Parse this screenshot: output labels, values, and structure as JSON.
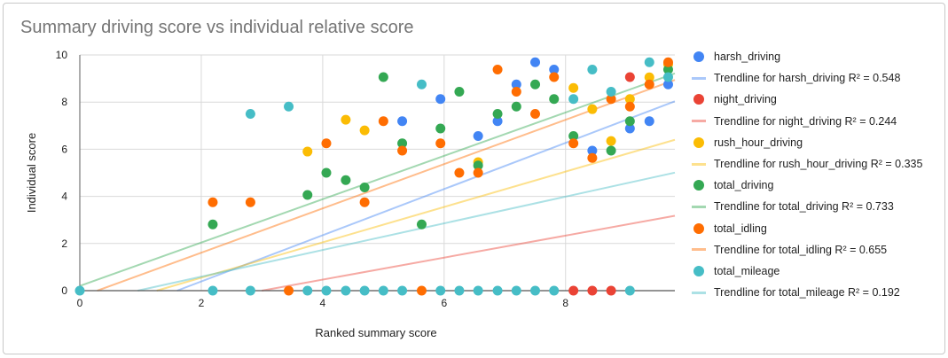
{
  "chart_data": {
    "type": "scatter",
    "title": "Summary driving score vs individual relative score",
    "xlabel": "Ranked summary score",
    "ylabel": "Individual score",
    "xlim": [
      0,
      9.8
    ],
    "ylim": [
      0,
      10
    ],
    "xticks": [
      "0",
      "2",
      "4",
      "6",
      "8"
    ],
    "yticks": [
      "0",
      "2",
      "4",
      "6",
      "8",
      "10"
    ],
    "grid": true,
    "legend_position": "right",
    "series": [
      {
        "name": "harsh_driving",
        "color": "#4285f4",
        "trend_label": "Trendline for harsh_driving R² = 0.548",
        "trend": {
          "slope": 0.98,
          "intercept": -1.57
        },
        "points": [
          [
            5.31,
            7.19
          ],
          [
            5.94,
            8.13
          ],
          [
            6.56,
            6.56
          ],
          [
            6.88,
            7.19
          ],
          [
            7.19,
            8.75
          ],
          [
            7.5,
            9.69
          ],
          [
            7.81,
            9.38
          ],
          [
            8.44,
            5.94
          ],
          [
            9.06,
            6.88
          ],
          [
            9.38,
            7.19
          ],
          [
            9.69,
            8.75
          ]
        ]
      },
      {
        "name": "night_driving",
        "color": "#ea4335",
        "trend_label": "Trendline for night_driving R² = 0.244",
        "trend": {
          "slope": 0.467,
          "intercept": -1.4
        },
        "points": [
          [
            8.13,
            0
          ],
          [
            8.44,
            0
          ],
          [
            8.75,
            0
          ],
          [
            9.06,
            9.06
          ]
        ]
      },
      {
        "name": "rush_hour_driving",
        "color": "#fbbc04",
        "trend_label": "Trendline for rush_hour_driving R² = 0.335",
        "trend": {
          "slope": 0.75,
          "intercept": -0.95
        },
        "points": [
          [
            3.75,
            5.9
          ],
          [
            4.38,
            7.25
          ],
          [
            4.69,
            6.8
          ],
          [
            6.56,
            5.45
          ],
          [
            8.13,
            8.6
          ],
          [
            8.44,
            7.7
          ],
          [
            8.75,
            6.35
          ],
          [
            9.06,
            8.13
          ],
          [
            9.38,
            9.05
          ],
          [
            9.69,
            9.6
          ]
        ]
      },
      {
        "name": "total_driving",
        "color": "#34a853",
        "trend_label": "Trendline for total_driving R² = 0.733",
        "trend": {
          "slope": 0.92,
          "intercept": 0.2
        },
        "points": [
          [
            2.19,
            2.81
          ],
          [
            3.75,
            4.06
          ],
          [
            4.06,
            5.0
          ],
          [
            4.38,
            4.69
          ],
          [
            4.69,
            4.38
          ],
          [
            5.0,
            9.06
          ],
          [
            5.31,
            6.25
          ],
          [
            5.63,
            2.81
          ],
          [
            5.94,
            6.88
          ],
          [
            6.25,
            8.44
          ],
          [
            6.56,
            5.31
          ],
          [
            6.88,
            7.5
          ],
          [
            7.19,
            7.81
          ],
          [
            7.5,
            8.75
          ],
          [
            7.81,
            8.13
          ],
          [
            8.13,
            6.56
          ],
          [
            8.75,
            5.94
          ],
          [
            9.06,
            7.19
          ],
          [
            9.69,
            9.38
          ]
        ]
      },
      {
        "name": "total_idling",
        "color": "#ff6d01",
        "trend_label": "Trendline for total_idling R² = 0.655",
        "trend": {
          "slope": 0.94,
          "intercept": -0.27
        },
        "points": [
          [
            2.19,
            3.75
          ],
          [
            2.81,
            3.75
          ],
          [
            3.44,
            0
          ],
          [
            4.06,
            6.25
          ],
          [
            4.69,
            3.75
          ],
          [
            5.0,
            7.19
          ],
          [
            5.31,
            5.94
          ],
          [
            5.63,
            0
          ],
          [
            5.94,
            6.25
          ],
          [
            6.25,
            5.0
          ],
          [
            6.56,
            5.0
          ],
          [
            6.88,
            9.38
          ],
          [
            7.19,
            8.44
          ],
          [
            7.5,
            7.5
          ],
          [
            7.81,
            9.06
          ],
          [
            8.13,
            6.25
          ],
          [
            8.44,
            5.63
          ],
          [
            8.75,
            8.13
          ],
          [
            9.06,
            7.81
          ],
          [
            9.38,
            8.75
          ],
          [
            9.69,
            9.69
          ]
        ]
      },
      {
        "name": "total_mileage",
        "color": "#46bdc6",
        "trend_label": "Trendline for total_mileage R² = 0.192",
        "trend": {
          "slope": 0.566,
          "intercept": -0.54
        },
        "points": [
          [
            0,
            0
          ],
          [
            2.19,
            0
          ],
          [
            2.81,
            7.5
          ],
          [
            2.81,
            0
          ],
          [
            3.44,
            7.81
          ],
          [
            3.75,
            0
          ],
          [
            4.06,
            0
          ],
          [
            4.38,
            0
          ],
          [
            4.69,
            0
          ],
          [
            5.0,
            0
          ],
          [
            5.31,
            0
          ],
          [
            5.63,
            8.75
          ],
          [
            5.94,
            0
          ],
          [
            6.25,
            0
          ],
          [
            6.56,
            0
          ],
          [
            6.88,
            0
          ],
          [
            7.19,
            0
          ],
          [
            7.5,
            0
          ],
          [
            7.81,
            0
          ],
          [
            8.13,
            8.13
          ],
          [
            8.44,
            9.38
          ],
          [
            8.75,
            8.44
          ],
          [
            9.06,
            0
          ],
          [
            9.38,
            9.69
          ],
          [
            9.69,
            9.06
          ]
        ]
      }
    ]
  }
}
